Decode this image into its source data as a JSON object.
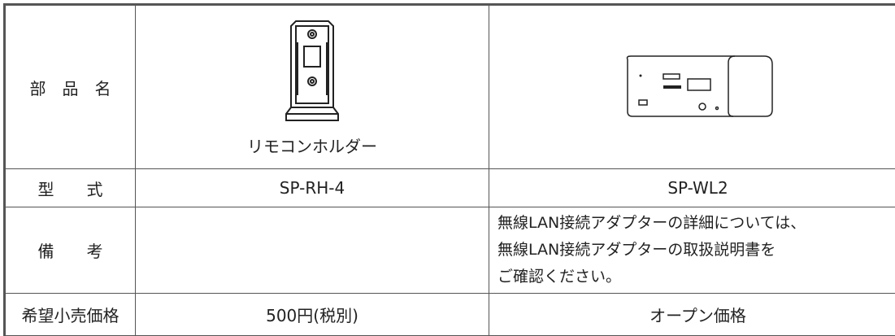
{
  "table": {
    "rows": [
      {
        "label": "部　品　名",
        "remote_holder": "リモコンホルダー"
      },
      {
        "label": "型　　式",
        "remote_holder": "SP-RH-4",
        "wifi_adapter": "SP-WL2"
      },
      {
        "label": "備　　考",
        "wifi_adapter": [
          "無線LAN接続アダプターの詳細については、",
          "無線LAN接続アダプターの取扱説明書を",
          "ご確認ください。"
        ]
      },
      {
        "label": "希望小売価格",
        "remote_holder": "500円(税別)",
        "wifi_adapter": "オープン価格"
      }
    ]
  }
}
